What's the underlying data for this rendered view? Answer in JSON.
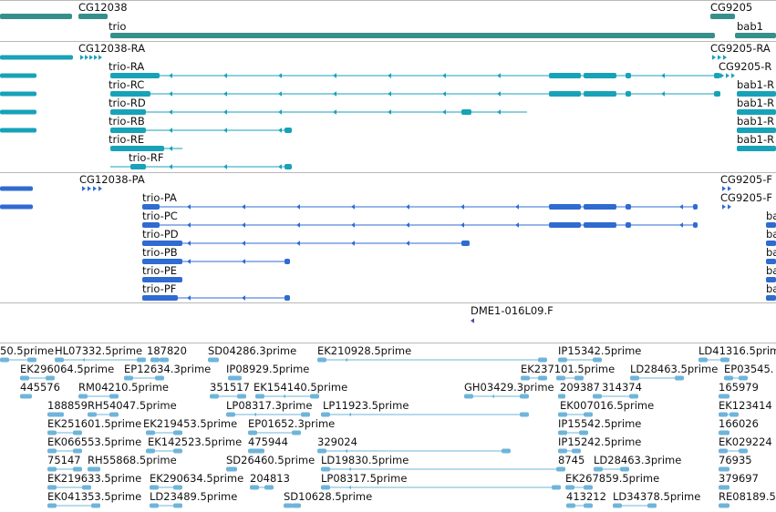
{
  "colors": {
    "gene": "#368f8a",
    "transcript": "#17a2b8",
    "protein": "#2f6bd0",
    "est": "#6fb4da",
    "feature": "#4b4fa0"
  },
  "genes": [
    {
      "id": "g1",
      "label": "CG12038"
    },
    {
      "id": "g2",
      "label": "trio"
    },
    {
      "id": "g3",
      "label": "CG9205"
    },
    {
      "id": "g4",
      "label": "bab1"
    }
  ],
  "transcripts": [
    {
      "id": "t1",
      "label": "CG12038-RA"
    },
    {
      "id": "t2",
      "label": "trio-RA"
    },
    {
      "id": "t3",
      "label": "trio-RC"
    },
    {
      "id": "t4",
      "label": "trio-RD"
    },
    {
      "id": "t5",
      "label": "trio-RB"
    },
    {
      "id": "t6",
      "label": "trio-RE"
    },
    {
      "id": "t7",
      "label": "trio-RF"
    },
    {
      "id": "t8",
      "label": "CG9205-RA"
    },
    {
      "id": "t9",
      "label": "CG9205-R"
    },
    {
      "id": "t10",
      "label": "bab1-R"
    },
    {
      "id": "t11",
      "label": "bab1-R"
    },
    {
      "id": "t12",
      "label": "bab1-R"
    },
    {
      "id": "t13",
      "label": "bab1-R"
    }
  ],
  "proteins": [
    {
      "id": "p1",
      "label": "CG12038-PA"
    },
    {
      "id": "p2",
      "label": "trio-PA"
    },
    {
      "id": "p3",
      "label": "trio-PC"
    },
    {
      "id": "p4",
      "label": "trio-PD"
    },
    {
      "id": "p5",
      "label": "trio-PB"
    },
    {
      "id": "p6",
      "label": "trio-PE"
    },
    {
      "id": "p7",
      "label": "trio-PF"
    },
    {
      "id": "p8",
      "label": "CG9205-F"
    },
    {
      "id": "p9",
      "label": "CG9205-F"
    },
    {
      "id": "p10",
      "label": "bal"
    },
    {
      "id": "p11",
      "label": "bal"
    },
    {
      "id": "p12",
      "label": "bal"
    },
    {
      "id": "p13",
      "label": "bal"
    },
    {
      "id": "p14",
      "label": "bal"
    }
  ],
  "features": [
    {
      "id": "f1",
      "label": "DME1-016L09.F"
    }
  ],
  "ests": [
    {
      "label": "50.5prime"
    },
    {
      "label": "HL07332.5prime"
    },
    {
      "label": "187820"
    },
    {
      "label": "SD04286.3prime"
    },
    {
      "label": "EK210928.5prime"
    },
    {
      "label": "IP15342.5prime"
    },
    {
      "label": "LD41316.5prime"
    },
    {
      "label": "EK296064.5prime"
    },
    {
      "label": "EP12634.3prime"
    },
    {
      "label": "IP08929.5prime"
    },
    {
      "label": "EK237101.5prime"
    },
    {
      "label": "LD28463.5prime"
    },
    {
      "label": "EP03545."
    },
    {
      "label": "445576"
    },
    {
      "label": "RM04210.5prime"
    },
    {
      "label": "351517"
    },
    {
      "label": "EK154140.5prime"
    },
    {
      "label": "GH03429.3prime"
    },
    {
      "label": "209387"
    },
    {
      "label": "314374"
    },
    {
      "label": "165979"
    },
    {
      "label": "188859"
    },
    {
      "label": "RH54047.5prime"
    },
    {
      "label": "LP08317.3prime"
    },
    {
      "label": "LP11923.5prime"
    },
    {
      "label": "EK007016.5prime"
    },
    {
      "label": "EK123414"
    },
    {
      "label": "EK251601.5prime"
    },
    {
      "label": "EK219453.5prime"
    },
    {
      "label": "EP01652.3prime"
    },
    {
      "label": "IP15542.5prime"
    },
    {
      "label": "166026"
    },
    {
      "label": "EK066553.5prime"
    },
    {
      "label": "EK142523.5prime"
    },
    {
      "label": "475944"
    },
    {
      "label": "329024"
    },
    {
      "label": "IP15242.5prime"
    },
    {
      "label": "EK029224"
    },
    {
      "label": "75147"
    },
    {
      "label": "RH55868.5prime"
    },
    {
      "label": "SD26460.5prime"
    },
    {
      "label": "LD19830.5prime"
    },
    {
      "label": "8745"
    },
    {
      "label": "LD28463.3prime"
    },
    {
      "label": "76935"
    },
    {
      "label": "EK219633.5prime"
    },
    {
      "label": "EK290634.5prime"
    },
    {
      "label": "204813"
    },
    {
      "label": "LP08317.5prime"
    },
    {
      "label": "EK267859.5prime"
    },
    {
      "label": "379697"
    },
    {
      "label": "EK041353.5prime"
    },
    {
      "label": "LD23489.5prime"
    },
    {
      "label": "SD10628.5prime"
    },
    {
      "label": "413212"
    },
    {
      "label": "LD34378.5prime"
    },
    {
      "label": "RE08189.5"
    }
  ]
}
